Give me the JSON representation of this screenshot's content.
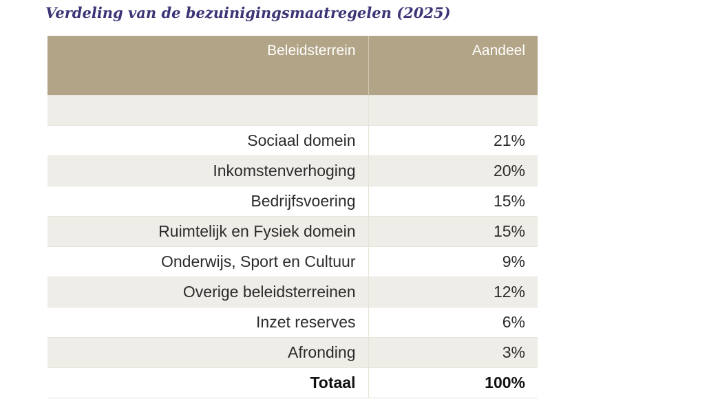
{
  "title": "Verdeling van de bezuinigingsmaatregelen (2025)",
  "colors": {
    "header_bg": "#b2a487",
    "header_text": "#ffffff",
    "title_text": "#3b3576",
    "band_row": "#efede8"
  },
  "chart_data": {
    "type": "table",
    "title": "Verdeling van de bezuinigingsmaatregelen (2025)",
    "columns": [
      "Beleidsterrein",
      "Aandeel"
    ],
    "rows": [
      [
        "",
        ""
      ],
      [
        "Sociaal domein",
        "21%"
      ],
      [
        "Inkomstenverhoging",
        "20%"
      ],
      [
        "Bedrijfsvoering",
        "15%"
      ],
      [
        "Ruimtelijk en Fysiek domein",
        "15%"
      ],
      [
        "Onderwijs, Sport en Cultuur",
        "9%"
      ],
      [
        "Overige beleidsterreinen",
        "12%"
      ],
      [
        "Inzet reserves",
        "6%"
      ],
      [
        "Afronding",
        "3%"
      ]
    ],
    "total": [
      "Totaal",
      "100%"
    ]
  }
}
